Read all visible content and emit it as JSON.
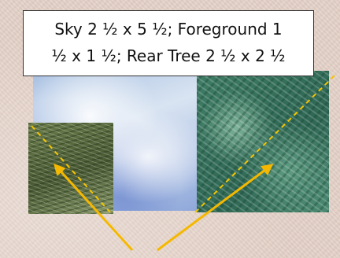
{
  "caption": {
    "line1": "Sky 2 ½ x 5 ½; Foreground 1",
    "line2": "½ x 1 ½; Rear Tree 2 ½ x 2 ½"
  },
  "colors": {
    "arrow": "#f5b800",
    "guide": "#f5c400",
    "label_border": "#333333"
  }
}
